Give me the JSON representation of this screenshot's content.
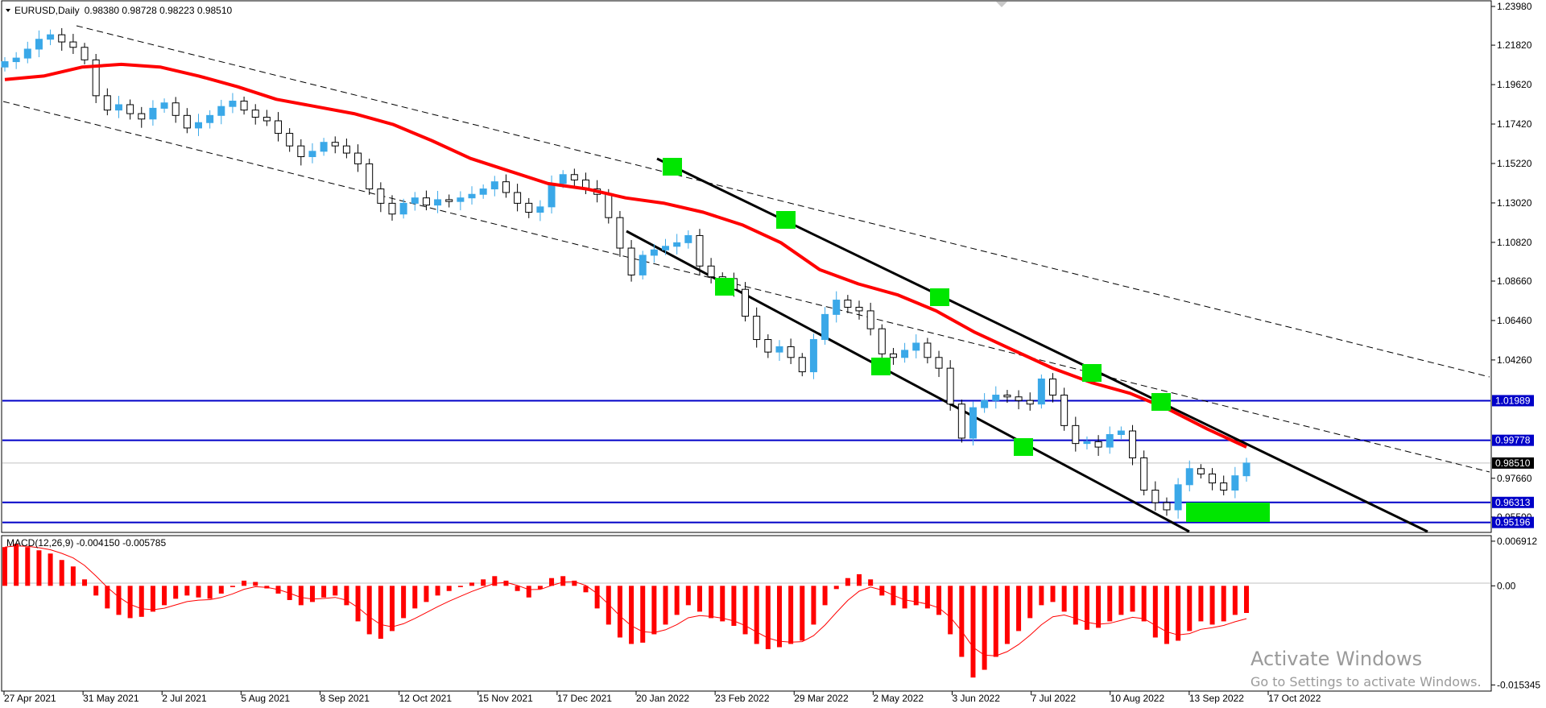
{
  "chart_data": {
    "type": "candlestick",
    "symbol_header": "EURUSD,Daily",
    "ohlc_header": "0.98380 0.98728 0.98223 0.98510",
    "colors": {
      "bull": "#3aa8e8",
      "bear": "#000000",
      "ma": "#ff0000",
      "channel_dash": "#000000",
      "trend": "#000000",
      "level": "#0000c8",
      "marker": "#00e600",
      "macd_hist": "#ff0000",
      "macd_signal": "#ff0000"
    },
    "x_dates": [
      "27 Apr 2021",
      "31 May 2021",
      "2 Jul 2021",
      "5 Aug 2021",
      "8 Sep 2021",
      "12 Oct 2021",
      "15 Nov 2021",
      "17 Dec 2021",
      "20 Jan 2022",
      "23 Feb 2022",
      "29 Mar 2022",
      "2 May 2022",
      "3 Jun 2022",
      "7 Jul 2022",
      "10 Aug 2022",
      "13 Sep 2022",
      "17 Oct 2022"
    ],
    "price_ticks": [
      "1.23980",
      "1.21820",
      "1.19620",
      "1.17420",
      "1.15220",
      "1.13020",
      "1.10820",
      "1.08660",
      "1.06460",
      "1.04260",
      "0.97660",
      "0.95500"
    ],
    "price_range": [
      0.95,
      1.2398
    ],
    "current_price": {
      "label": "0.98510",
      "value": 0.9851
    },
    "levels": [
      {
        "label": "1.01989",
        "value": 1.01989
      },
      {
        "label": "0.99778",
        "value": 0.99778
      },
      {
        "label": "0.96313",
        "value": 0.96313
      },
      {
        "label": "0.95196",
        "value": 0.95196
      }
    ],
    "closes": [
      1.209,
      1.211,
      1.216,
      1.2215,
      1.224,
      1.22,
      1.217,
      1.21,
      1.19,
      1.182,
      1.185,
      1.18,
      1.177,
      1.183,
      1.186,
      1.179,
      1.172,
      1.175,
      1.179,
      1.184,
      1.187,
      1.182,
      1.178,
      1.176,
      1.169,
      1.162,
      1.156,
      1.159,
      1.164,
      1.162,
      1.158,
      1.152,
      1.138,
      1.13,
      1.124,
      1.13,
      1.133,
      1.129,
      1.132,
      1.131,
      1.133,
      1.135,
      1.138,
      1.142,
      1.136,
      1.13,
      1.125,
      1.128,
      1.141,
      1.146,
      1.143,
      1.138,
      1.135,
      1.122,
      1.105,
      1.09,
      1.101,
      1.104,
      1.106,
      1.108,
      1.112,
      1.095,
      1.089,
      1.088,
      1.082,
      1.067,
      1.054,
      1.047,
      1.05,
      1.044,
      1.036,
      1.054,
      1.068,
      1.076,
      1.072,
      1.07,
      1.06,
      1.046,
      1.044,
      1.048,
      1.052,
      1.044,
      1.038,
      1.018,
      0.999,
      1.016,
      1.02,
      1.023,
      1.022,
      1.02,
      1.018,
      1.032,
      1.023,
      1.006,
      0.996,
      0.997,
      0.994,
      1.001,
      1.003,
      0.988,
      0.97,
      0.963,
      0.959,
      0.973,
      0.982,
      0.979,
      0.974,
      0.97,
      0.978,
      0.9851
    ],
    "ma_values": [
      1.199,
      1.201,
      1.206,
      1.2075,
      1.206,
      1.201,
      1.195,
      1.188,
      1.184,
      1.18,
      1.174,
      1.165,
      1.155,
      1.148,
      1.141,
      1.138,
      1.133,
      1.13,
      1.125,
      1.118,
      1.108,
      1.093,
      1.085,
      1.079,
      1.07,
      1.058,
      1.048,
      1.038,
      1.03,
      1.024,
      1.015,
      1.004,
      0.994
    ],
    "macd": {
      "header": "MACD(12,26,9) -0.004150 -0.005785",
      "ticks": [
        "0.006912",
        "0.00",
        "-0.015345"
      ],
      "range": [
        -0.0153,
        0.0069
      ],
      "hist": [
        0.006,
        0.0065,
        0.006,
        0.0055,
        0.005,
        0.004,
        0.003,
        0.001,
        -0.0015,
        -0.0035,
        -0.0045,
        -0.005,
        -0.0048,
        -0.004,
        -0.003,
        -0.002,
        -0.0015,
        -0.0018,
        -0.002,
        -0.0012,
        -0.0002,
        0.0008,
        0.0006,
        -0.0004,
        -0.0012,
        -0.0022,
        -0.003,
        -0.0025,
        -0.0018,
        -0.0015,
        -0.003,
        -0.0055,
        -0.0075,
        -0.0082,
        -0.007,
        -0.005,
        -0.0035,
        -0.0025,
        -0.0015,
        -0.0008,
        -0.0002,
        0.0005,
        0.001,
        0.0015,
        0.0008,
        -0.0008,
        -0.0018,
        -0.0005,
        0.0012,
        0.0015,
        0.0008,
        -0.001,
        -0.0035,
        -0.006,
        -0.008,
        -0.009,
        -0.0088,
        -0.0075,
        -0.006,
        -0.0045,
        -0.003,
        -0.004,
        -0.005,
        -0.0055,
        -0.0062,
        -0.0075,
        -0.009,
        -0.0098,
        -0.0095,
        -0.009,
        -0.0085,
        -0.006,
        -0.003,
        -0.0005,
        0.0012,
        0.0018,
        0.001,
        -0.0015,
        -0.003,
        -0.0035,
        -0.003,
        -0.0035,
        -0.0045,
        -0.0075,
        -0.011,
        -0.0142,
        -0.013,
        -0.011,
        -0.009,
        -0.007,
        -0.005,
        -0.003,
        -0.0025,
        -0.004,
        -0.006,
        -0.0068,
        -0.0065,
        -0.0055,
        -0.0045,
        -0.004,
        -0.0055,
        -0.008,
        -0.009,
        -0.0085,
        -0.007,
        -0.0055,
        -0.006,
        -0.0055,
        -0.0045,
        -0.0042
      ]
    }
  },
  "watermark": {
    "line1": "Activate Windows",
    "line2": "Go to Settings to activate Windows."
  }
}
